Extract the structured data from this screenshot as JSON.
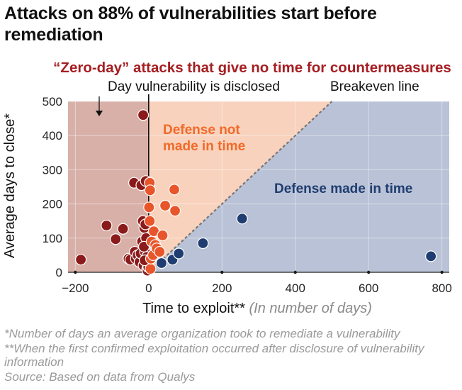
{
  "title": "Attacks on 88% of vulnerabilities start before remediation",
  "footnotes": {
    "days_to_close": "*Number of days an average organization took to remediate a vulnerability",
    "time_to_exploit": "**When the first confirmed exploitation occurred after disclosure of vulnerability information",
    "source": "Source: Based on data from Qualys"
  },
  "chart_data": {
    "type": "scatter",
    "xlabel": "Time to exploit**",
    "xlabel_note": "(In number of days)",
    "ylabel": "Average days to close*",
    "xlim": [
      -220,
      820
    ],
    "ylim": [
      0,
      500
    ],
    "x_ticks": [
      -200,
      0,
      200,
      400,
      600,
      800
    ],
    "x_tick_labels": [
      "−200",
      "0",
      "200",
      "400",
      "600",
      "800"
    ],
    "y_ticks": [
      0,
      100,
      200,
      300,
      400,
      500
    ],
    "y_tick_labels": [
      "0",
      "100",
      "200",
      "300",
      "400",
      "500"
    ],
    "grid": true,
    "colors": {
      "zero_day_region": "#d8b0a8",
      "not_in_time_region": "#f8d2bc",
      "in_time_region": "#b9c2d6",
      "zero_day_points": "#8b1a1a",
      "not_in_time_points": "#e8552a",
      "in_time_points": "#1f3d70",
      "zero_day_text": "#a51e22",
      "not_in_time_text": "#f26a2a",
      "in_time_text": "#1f3d70",
      "breakeven_line": "#777777"
    },
    "annotations": {
      "zero_day": "“Zero-day” attacks that give no time for countermeasures",
      "disclosed": "Day vulnerability is disclosed",
      "breakeven": "Breakeven line",
      "not_in_time": [
        "Defense not",
        "made in time"
      ],
      "in_time": "Defense made in time"
    },
    "series": [
      {
        "key": "zero_day",
        "points": [
          [
            -185,
            37
          ],
          [
            -115,
            137
          ],
          [
            -90,
            97
          ],
          [
            -70,
            127
          ],
          [
            -55,
            40
          ],
          [
            -50,
            37
          ],
          [
            -40,
            262
          ],
          [
            -38,
            60
          ],
          [
            -35,
            40
          ],
          [
            -30,
            50
          ],
          [
            -25,
            30
          ],
          [
            -22,
            55
          ],
          [
            -20,
            255
          ],
          [
            -18,
            90
          ],
          [
            -16,
            150
          ],
          [
            -15,
            460
          ],
          [
            -14,
            20
          ],
          [
            -12,
            130
          ],
          [
            -10,
            60
          ],
          [
            -8,
            267
          ],
          [
            -6,
            30
          ],
          [
            -5,
            45
          ],
          [
            -4,
            10
          ],
          [
            -3,
            5
          ],
          [
            -2,
            25
          ],
          [
            -1,
            15
          ],
          [
            -7,
            100
          ],
          [
            -9,
            140
          ],
          [
            -11,
            35
          ],
          [
            -13,
            75
          ]
        ]
      },
      {
        "key": "not_in_time",
        "points": [
          [
            1,
            190
          ],
          [
            3,
            150
          ],
          [
            3,
            262
          ],
          [
            4,
            240
          ],
          [
            5,
            10
          ],
          [
            6,
            40
          ],
          [
            8,
            90
          ],
          [
            12,
            50
          ],
          [
            14,
            120
          ],
          [
            18,
            80
          ],
          [
            22,
            70
          ],
          [
            30,
            60
          ],
          [
            38,
            108
          ],
          [
            45,
            195
          ],
          [
            70,
            242
          ],
          [
            72,
            180
          ]
        ]
      },
      {
        "key": "in_time",
        "points": [
          [
            35,
            27
          ],
          [
            65,
            37
          ],
          [
            82,
            55
          ],
          [
            148,
            85
          ],
          [
            255,
            157
          ],
          [
            770,
            47
          ]
        ]
      }
    ]
  }
}
